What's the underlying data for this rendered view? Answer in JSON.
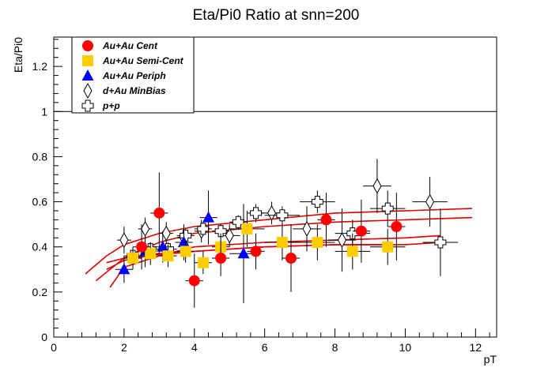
{
  "chart_data": {
    "type": "scatter",
    "title": "Eta/Pi0 Ratio at snn=200",
    "xlabel": "pT",
    "ylabel": "Eta/Pi0",
    "xlim": [
      0,
      12.6
    ],
    "ylim": [
      0,
      1.33
    ],
    "x_ticks": [
      0,
      2,
      4,
      6,
      8,
      10,
      12
    ],
    "y_ticks": [
      0,
      0.2,
      0.4,
      0.6,
      0.8,
      1,
      1.2
    ],
    "x_tick_labels": [
      "0",
      "2",
      "4",
      "6",
      "8",
      "10",
      "12"
    ],
    "y_tick_labels": [
      "0",
      "0.2",
      "0.4",
      "0.6",
      "0.8",
      "1",
      "1.2"
    ],
    "reference_line": {
      "y": 1.0
    },
    "legend": {
      "position": "top-left",
      "entries": [
        "Au+Au Cent",
        "Au+Au Semi-Cent",
        "Au+Au Periph",
        "d+Au MinBias",
        "p+p"
      ]
    },
    "colors": {
      "cent": "#ff0000",
      "semi": "#ffcc00",
      "periph": "#0000ff",
      "fit": "#e00000"
    },
    "series": [
      {
        "name": "Au+Au Cent",
        "marker": "circle",
        "points": [
          {
            "x": 2.5,
            "y": 0.4,
            "xerr": 0.25,
            "yerr": 0.1
          },
          {
            "x": 3.0,
            "y": 0.55,
            "xerr": 0.25,
            "yerr": 0.18
          },
          {
            "x": 4.0,
            "y": 0.25,
            "xerr": 0.25,
            "yerr": 0.12
          },
          {
            "x": 4.75,
            "y": 0.35,
            "xerr": 0.25,
            "yerr": 0.08
          },
          {
            "x": 5.75,
            "y": 0.38,
            "xerr": 0.25,
            "yerr": 0.08
          },
          {
            "x": 6.75,
            "y": 0.35,
            "xerr": 0.25,
            "yerr": 0.15
          },
          {
            "x": 7.75,
            "y": 0.52,
            "xerr": 0.25,
            "yerr": 0.12
          },
          {
            "x": 8.75,
            "y": 0.47,
            "xerr": 0.25,
            "yerr": 0.14
          },
          {
            "x": 9.75,
            "y": 0.49,
            "xerr": 0.25,
            "yerr": 0.15
          }
        ]
      },
      {
        "name": "Au+Au Semi-Cent",
        "marker": "square",
        "points": [
          {
            "x": 2.25,
            "y": 0.35,
            "xerr": 0.25,
            "yerr": 0.05
          },
          {
            "x": 2.75,
            "y": 0.37,
            "xerr": 0.25,
            "yerr": 0.05
          },
          {
            "x": 3.25,
            "y": 0.36,
            "xerr": 0.25,
            "yerr": 0.05
          },
          {
            "x": 3.75,
            "y": 0.38,
            "xerr": 0.25,
            "yerr": 0.05
          },
          {
            "x": 4.25,
            "y": 0.33,
            "xerr": 0.25,
            "yerr": 0.05
          },
          {
            "x": 4.75,
            "y": 0.4,
            "xerr": 0.25,
            "yerr": 0.06
          },
          {
            "x": 5.5,
            "y": 0.48,
            "xerr": 0.5,
            "yerr": 0.08
          },
          {
            "x": 6.5,
            "y": 0.42,
            "xerr": 0.5,
            "yerr": 0.08
          },
          {
            "x": 7.5,
            "y": 0.42,
            "xerr": 0.5,
            "yerr": 0.08
          },
          {
            "x": 8.5,
            "y": 0.38,
            "xerr": 0.5,
            "yerr": 0.08
          },
          {
            "x": 9.5,
            "y": 0.4,
            "xerr": 0.5,
            "yerr": 0.08
          }
        ]
      },
      {
        "name": "Au+Au Periph",
        "marker": "triangle",
        "points": [
          {
            "x": 2.0,
            "y": 0.3,
            "xerr": 0.25,
            "yerr": 0.06
          },
          {
            "x": 2.6,
            "y": 0.38,
            "xerr": 0.25,
            "yerr": 0.07
          },
          {
            "x": 3.1,
            "y": 0.4,
            "xerr": 0.25,
            "yerr": 0.07
          },
          {
            "x": 3.7,
            "y": 0.42,
            "xerr": 0.25,
            "yerr": 0.08
          },
          {
            "x": 4.4,
            "y": 0.53,
            "xerr": 0.25,
            "yerr": 0.12
          },
          {
            "x": 5.4,
            "y": 0.37,
            "xerr": 0.4,
            "yerr": 0.22
          }
        ]
      },
      {
        "name": "d+Au MinBias",
        "marker": "diamond",
        "points": [
          {
            "x": 2.0,
            "y": 0.43,
            "xerr": 0.2,
            "yerr": 0.06
          },
          {
            "x": 2.6,
            "y": 0.48,
            "xerr": 0.2,
            "yerr": 0.05
          },
          {
            "x": 3.2,
            "y": 0.46,
            "xerr": 0.2,
            "yerr": 0.05
          },
          {
            "x": 3.7,
            "y": 0.44,
            "xerr": 0.2,
            "yerr": 0.05
          },
          {
            "x": 4.2,
            "y": 0.47,
            "xerr": 0.2,
            "yerr": 0.05
          },
          {
            "x": 5.0,
            "y": 0.45,
            "xerr": 0.3,
            "yerr": 0.05
          },
          {
            "x": 6.2,
            "y": 0.55,
            "xerr": 0.4,
            "yerr": 0.05
          },
          {
            "x": 7.2,
            "y": 0.48,
            "xerr": 0.4,
            "yerr": 0.1
          },
          {
            "x": 8.2,
            "y": 0.43,
            "xerr": 0.4,
            "yerr": 0.14
          },
          {
            "x": 9.2,
            "y": 0.67,
            "xerr": 0.4,
            "yerr": 0.12
          },
          {
            "x": 10.7,
            "y": 0.6,
            "xerr": 0.5,
            "yerr": 0.11
          }
        ]
      },
      {
        "name": "p+p",
        "marker": "cross",
        "points": [
          {
            "x": 2.25,
            "y": 0.36,
            "xerr": 0.25,
            "yerr": 0.03
          },
          {
            "x": 2.75,
            "y": 0.39,
            "xerr": 0.25,
            "yerr": 0.03
          },
          {
            "x": 3.25,
            "y": 0.39,
            "xerr": 0.25,
            "yerr": 0.03
          },
          {
            "x": 3.75,
            "y": 0.45,
            "xerr": 0.25,
            "yerr": 0.03
          },
          {
            "x": 4.25,
            "y": 0.48,
            "xerr": 0.25,
            "yerr": 0.03
          },
          {
            "x": 4.75,
            "y": 0.47,
            "xerr": 0.25,
            "yerr": 0.03
          },
          {
            "x": 5.25,
            "y": 0.51,
            "xerr": 0.25,
            "yerr": 0.03
          },
          {
            "x": 5.75,
            "y": 0.55,
            "xerr": 0.25,
            "yerr": 0.04
          },
          {
            "x": 6.5,
            "y": 0.54,
            "xerr": 0.5,
            "yerr": 0.04
          },
          {
            "x": 7.5,
            "y": 0.6,
            "xerr": 0.5,
            "yerr": 0.05
          },
          {
            "x": 8.5,
            "y": 0.46,
            "xerr": 0.5,
            "yerr": 0.06
          },
          {
            "x": 9.5,
            "y": 0.57,
            "xerr": 0.5,
            "yerr": 0.08
          },
          {
            "x": 11.0,
            "y": 0.42,
            "xerr": 0.5,
            "yerr": 0.15
          }
        ]
      }
    ],
    "fits": [
      {
        "points": [
          [
            0.9,
            0.28
          ],
          [
            1.5,
            0.36
          ],
          [
            2.0,
            0.41
          ],
          [
            3.0,
            0.46
          ],
          [
            4.0,
            0.49
          ],
          [
            6.0,
            0.52
          ],
          [
            8.0,
            0.55
          ],
          [
            10.0,
            0.56
          ],
          [
            11.9,
            0.57
          ]
        ]
      },
      {
        "points": [
          [
            1.2,
            0.25
          ],
          [
            2.0,
            0.35
          ],
          [
            3.0,
            0.42
          ],
          [
            4.0,
            0.46
          ],
          [
            6.0,
            0.49
          ],
          [
            8.0,
            0.51
          ],
          [
            10.0,
            0.52
          ],
          [
            11.9,
            0.53
          ]
        ]
      },
      {
        "points": [
          [
            1.6,
            0.22
          ],
          [
            2.0,
            0.31
          ],
          [
            3.0,
            0.36
          ],
          [
            4.0,
            0.4
          ],
          [
            6.0,
            0.42
          ],
          [
            8.0,
            0.43
          ],
          [
            10.0,
            0.44
          ],
          [
            11.0,
            0.45
          ]
        ]
      },
      {
        "points": [
          [
            1.5,
            0.33
          ],
          [
            2.0,
            0.35
          ],
          [
            4.0,
            0.38
          ],
          [
            6.0,
            0.4
          ],
          [
            8.0,
            0.41
          ],
          [
            10.0,
            0.41
          ],
          [
            11.0,
            0.42
          ]
        ]
      },
      {
        "points": [
          [
            1.5,
            0.3
          ],
          [
            2.0,
            0.34
          ],
          [
            3.0,
            0.37
          ],
          [
            4.0,
            0.38
          ],
          [
            6.0,
            0.4
          ],
          [
            8.0,
            0.41
          ],
          [
            9.5,
            0.41
          ]
        ]
      }
    ]
  }
}
